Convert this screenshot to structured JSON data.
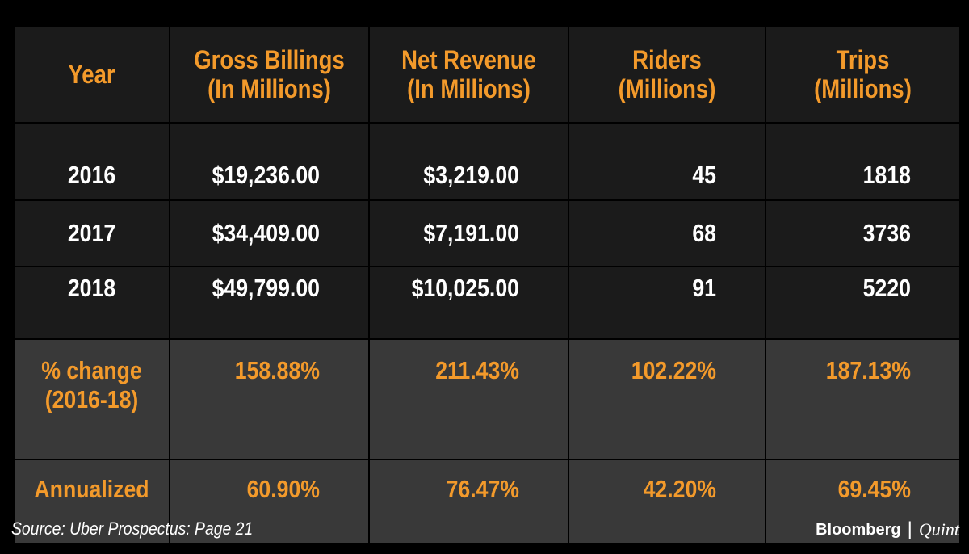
{
  "chart_data": {
    "type": "table",
    "columns": [
      "Year",
      "Gross Billings (In Millions)",
      "Net Revenue (In Millions)",
      "Riders (Millions)",
      "Trips (Millions)"
    ],
    "header": [
      [
        "Year"
      ],
      [
        "Gross Billings",
        "(In Millions)"
      ],
      [
        "Net Revenue",
        "(In Millions)"
      ],
      [
        "Riders",
        "(Millions)"
      ],
      [
        "Trips",
        "(Millions)"
      ]
    ],
    "rows": [
      [
        "2016",
        "$19,236.00",
        "$3,219.00",
        "45",
        "1818"
      ],
      [
        "2017",
        "$34,409.00",
        "$7,191.00",
        "68",
        "3736"
      ],
      [
        "2018",
        "$49,799.00",
        "$10,025.00",
        "91",
        "5220"
      ]
    ],
    "pct_change": {
      "label": [
        "% change",
        "(2016-18)"
      ],
      "values": [
        "158.88%",
        "211.43%",
        "102.22%",
        "187.13%"
      ]
    },
    "annualized": {
      "label": "Annualized",
      "values": [
        "60.90%",
        "76.47%",
        "42.20%",
        "69.45%"
      ]
    }
  },
  "footer": {
    "source": "Source: Uber Prospectus: Page 21",
    "brand_left": "Bloomberg",
    "brand_sep": "|",
    "brand_right": "Quint"
  },
  "colors": {
    "accent": "#f39a2b",
    "background": "#000000",
    "cell_dark": "#1b1b1b",
    "cell_grey": "#393939",
    "text": "#ffffff"
  }
}
